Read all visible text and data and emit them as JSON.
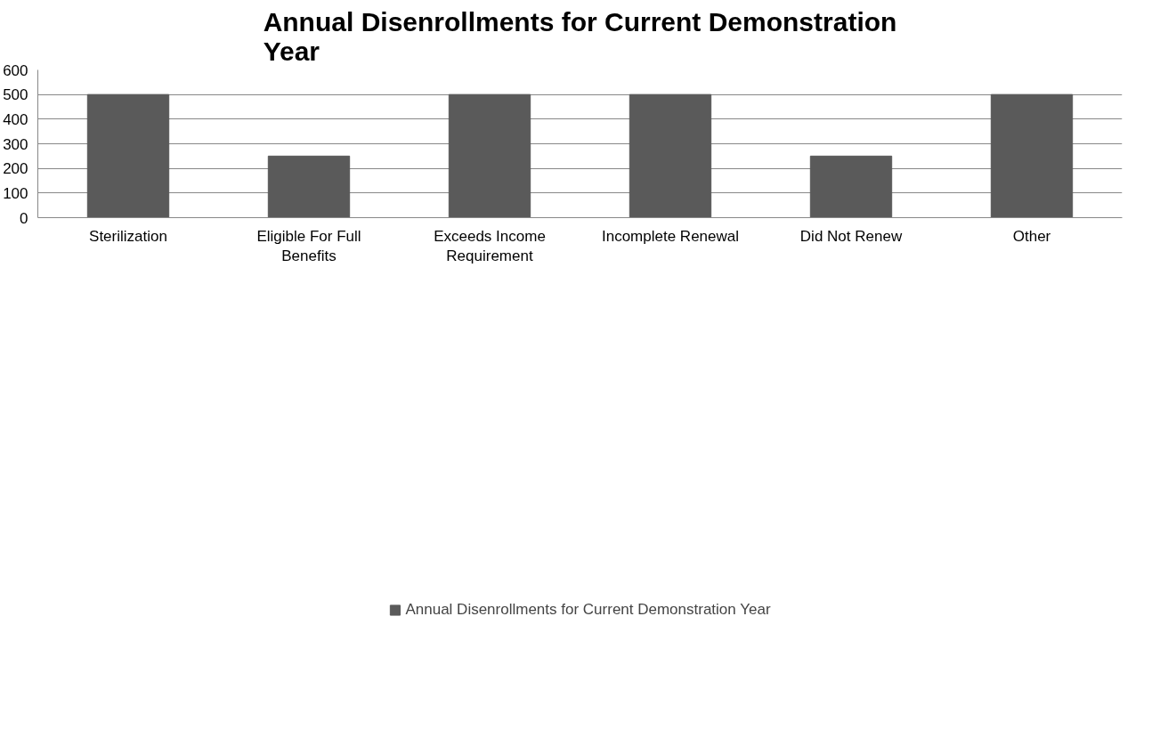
{
  "chart_data": {
    "type": "bar",
    "title": "Annual Disenrollments for Current Demonstration Year",
    "categories": [
      "Sterilization",
      "Eligible For Full Benefits",
      "Exceeds Income Requirement",
      "Incomplete Renewal",
      "Did Not Renew",
      "Other"
    ],
    "series": [
      {
        "name": "Annual Disenrollments for Current Demonstration Year",
        "color": "#5a5a5a",
        "values": [
          500,
          250,
          500,
          500,
          250,
          500
        ]
      }
    ],
    "ylim": [
      0,
      600
    ],
    "yticks": [
      0,
      100,
      200,
      300,
      400,
      500,
      600
    ],
    "grid": "y",
    "legend": "bottom"
  }
}
